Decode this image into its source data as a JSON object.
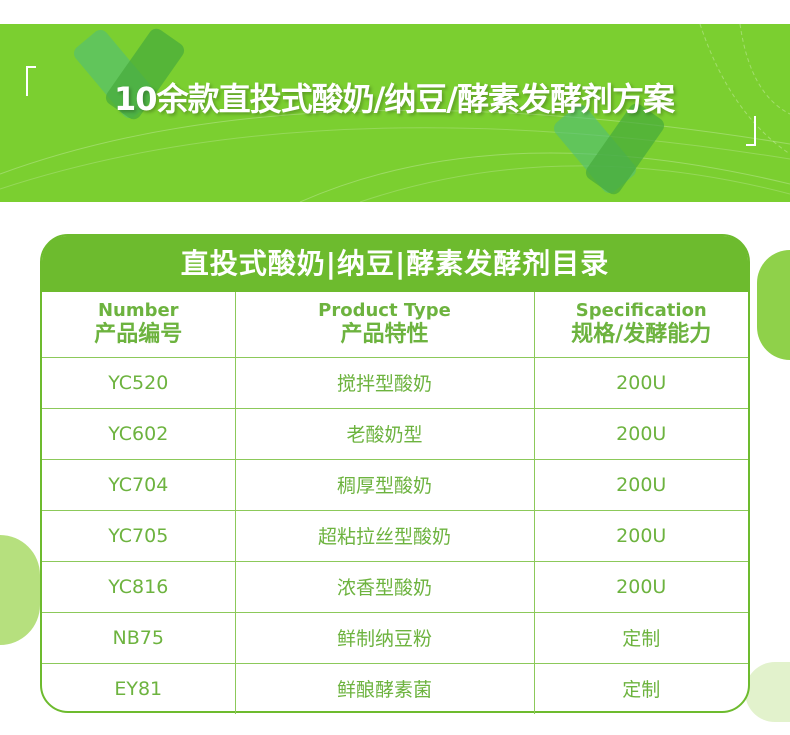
{
  "banner": {
    "title": "10余款直投式酸奶/纳豆/酵素发酵剂方案"
  },
  "catalog": {
    "title": "直投式酸奶|纳豆|酵素发酵剂目录",
    "headers": [
      {
        "en": "Number",
        "cn": "产品编号"
      },
      {
        "en": "Product Type",
        "cn": "产品特性"
      },
      {
        "en": "Specification",
        "cn": "规格/发酵能力"
      }
    ],
    "rows": [
      {
        "number": "YC520",
        "type": "搅拌型酸奶",
        "spec": "200U"
      },
      {
        "number": "YC602",
        "type": "老酸奶型",
        "spec": "200U"
      },
      {
        "number": "YC704",
        "type": "稠厚型酸奶",
        "spec": "200U"
      },
      {
        "number": "YC705",
        "type": "超粘拉丝型酸奶",
        "spec": "200U"
      },
      {
        "number": "YC816",
        "type": "浓香型酸奶",
        "spec": "200U"
      },
      {
        "number": "NB75",
        "type": "鲜制纳豆粉",
        "spec": "定制"
      },
      {
        "number": "EY81",
        "type": "鲜酿酵素菌",
        "spec": "定制"
      }
    ]
  },
  "colors": {
    "banner": "#7bcf30",
    "accent": "#6dbb2e",
    "text": "#6db33f"
  }
}
